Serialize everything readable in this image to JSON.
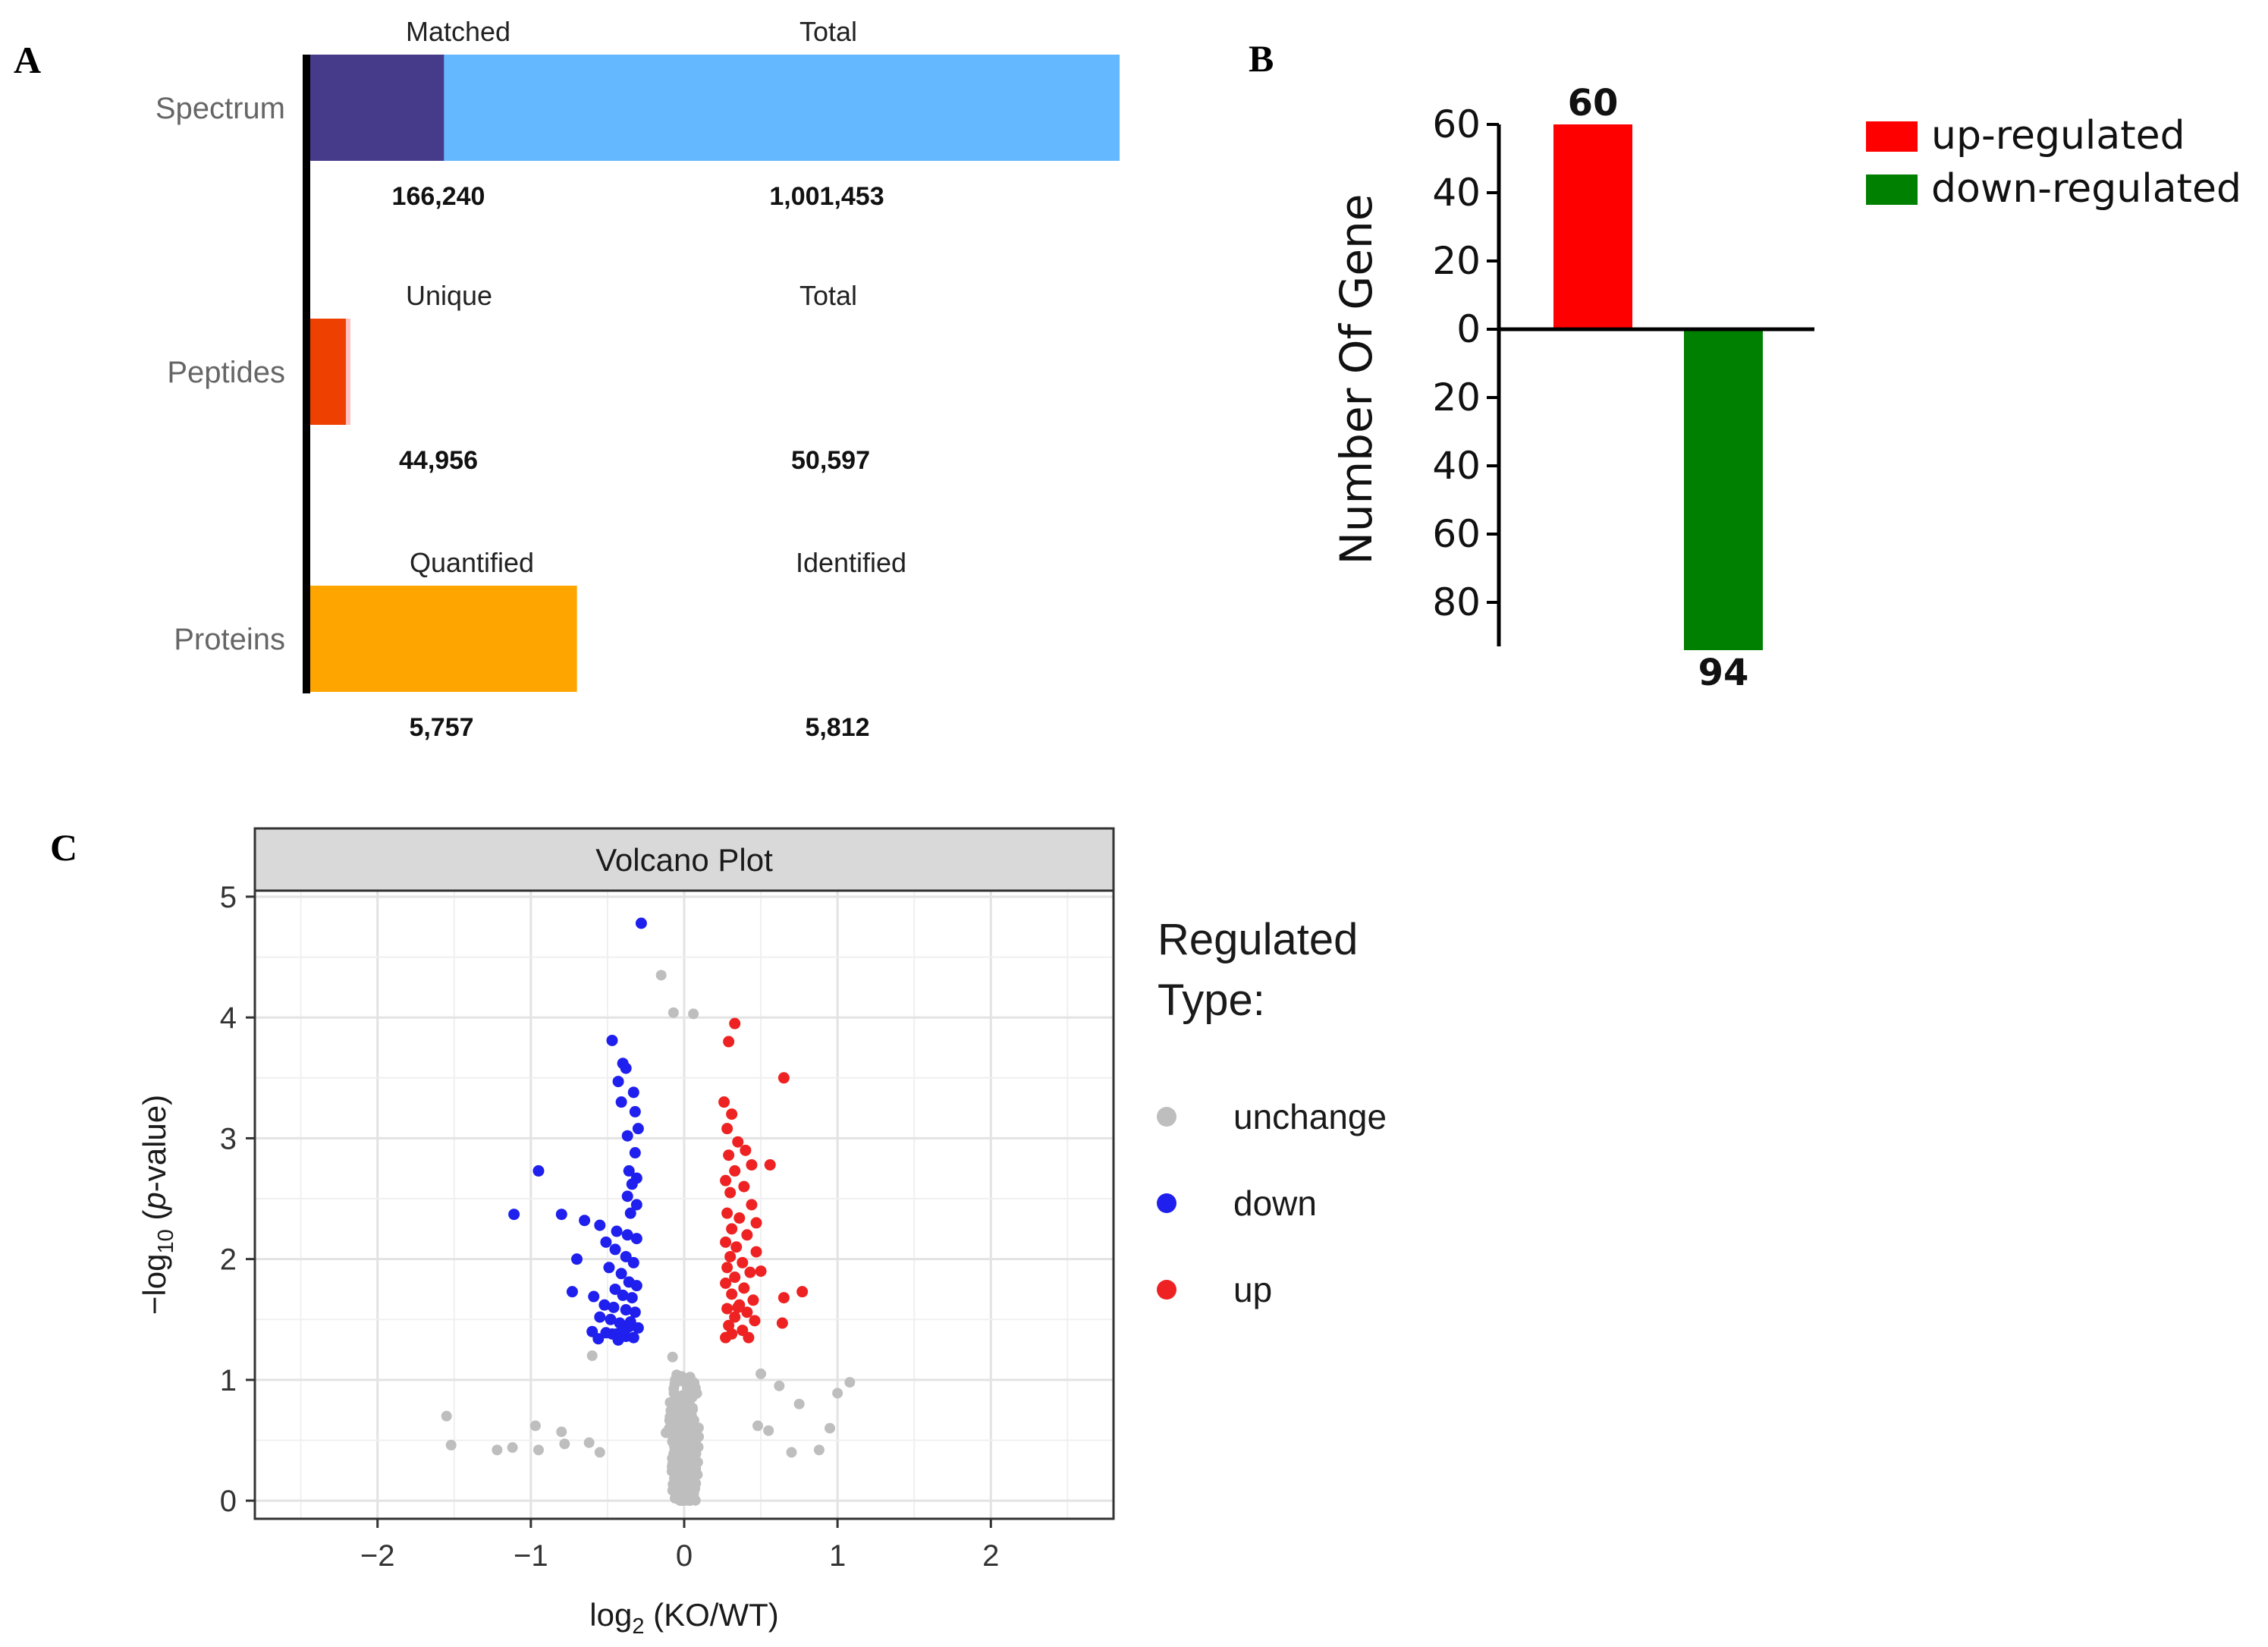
{
  "panel_letters": {
    "a": "A",
    "b": "B",
    "c": "C"
  },
  "chart_data": [
    {
      "type": "bar",
      "subtype": "horizontal-stacked-summary",
      "panel": "A",
      "rows": [
        {
          "label": "Spectrum",
          "left_header": "Matched",
          "right_header": "Total",
          "part_value": 166240,
          "total_value": 1001453,
          "part_label": "166,240",
          "total_label": "1,001,453",
          "part_color": "#463a8a",
          "total_color": "#63b8ff"
        },
        {
          "label": "Peptides",
          "left_header": "Unique",
          "right_header": "Total",
          "part_value": 44956,
          "total_value": 50597,
          "part_label": "44,956",
          "total_label": "50,597",
          "part_color": "#ee4000",
          "total_color": "#ffc1c1"
        },
        {
          "label": "Proteins",
          "left_header": "Quantified",
          "right_header": "Identified",
          "part_value": 5757,
          "total_value": 5812,
          "part_label": "5,757",
          "total_label": "5,812",
          "part_color": "#ffa500",
          "total_color": "#ffa500"
        }
      ]
    },
    {
      "type": "bar",
      "panel": "B",
      "categories": [
        "up-regulated",
        "down-regulated"
      ],
      "values": [
        60,
        -94
      ],
      "value_labels": [
        "60",
        "94"
      ],
      "colors": [
        "#ff0000",
        "#008000"
      ],
      "ylabel": "Number Of Gene",
      "ylim": [
        -94,
        60
      ],
      "yticks": [
        60,
        40,
        20,
        0,
        -20,
        -40,
        -60,
        -80
      ],
      "ytick_labels": [
        "60",
        "40",
        "20",
        "0",
        "20",
        "40",
        "60",
        "80"
      ],
      "legend": {
        "position": "right",
        "entries": [
          "up-regulated",
          "down-regulated"
        ]
      }
    },
    {
      "type": "scatter",
      "panel": "C",
      "title": "Volcano Plot",
      "xlabel_parts": {
        "base": "log",
        "sub": "2",
        "rest": " (KO/WT)"
      },
      "ylabel_parts": {
        "pre": "−log",
        "sub": "10",
        "open": " (",
        "italic": "p",
        "rest": "-value)"
      },
      "xlim": [
        -2.8,
        2.8
      ],
      "ylim": [
        -0.15,
        5.05
      ],
      "xticks": [
        -2,
        -1,
        0,
        1,
        2
      ],
      "xtick_labels": [
        "−2",
        "−1",
        "0",
        "1",
        "2"
      ],
      "yticks": [
        0,
        1,
        2,
        3,
        4,
        5
      ],
      "ytick_labels": [
        "0",
        "1",
        "2",
        "3",
        "4",
        "5"
      ],
      "legend": {
        "title_line1": "Regulated",
        "title_line2": "Type:",
        "position": "right",
        "entries": [
          {
            "name": "unchange",
            "color": "#bebebe"
          },
          {
            "name": "down",
            "color": "#1f1fee"
          },
          {
            "name": "up",
            "color": "#ee2222"
          }
        ]
      },
      "series": [
        {
          "name": "down",
          "color": "#1f1fee",
          "points": [
            [
              -0.28,
              4.78
            ],
            [
              -0.47,
              3.81
            ],
            [
              -0.4,
              3.62
            ],
            [
              -0.38,
              3.58
            ],
            [
              -0.43,
              3.47
            ],
            [
              -0.33,
              3.38
            ],
            [
              -0.41,
              3.3
            ],
            [
              -0.32,
              3.22
            ],
            [
              -0.3,
              3.08
            ],
            [
              -0.37,
              3.02
            ],
            [
              -0.32,
              2.88
            ],
            [
              -0.36,
              2.73
            ],
            [
              -0.31,
              2.67
            ],
            [
              -0.34,
              2.62
            ],
            [
              -0.95,
              2.73
            ],
            [
              -0.37,
              2.52
            ],
            [
              -0.31,
              2.45
            ],
            [
              -0.35,
              2.38
            ],
            [
              -1.11,
              2.37
            ],
            [
              -0.8,
              2.37
            ],
            [
              -0.65,
              2.32
            ],
            [
              -0.55,
              2.28
            ],
            [
              -0.44,
              2.23
            ],
            [
              -0.37,
              2.2
            ],
            [
              -0.31,
              2.17
            ],
            [
              -0.51,
              2.14
            ],
            [
              -0.45,
              2.08
            ],
            [
              -0.38,
              2.02
            ],
            [
              -0.7,
              2.0
            ],
            [
              -0.33,
              1.97
            ],
            [
              -0.49,
              1.93
            ],
            [
              -0.41,
              1.88
            ],
            [
              -0.36,
              1.81
            ],
            [
              -0.31,
              1.78
            ],
            [
              -0.73,
              1.73
            ],
            [
              -0.45,
              1.75
            ],
            [
              -0.4,
              1.7
            ],
            [
              -0.34,
              1.68
            ],
            [
              -0.59,
              1.69
            ],
            [
              -0.52,
              1.62
            ],
            [
              -0.46,
              1.6
            ],
            [
              -0.38,
              1.58
            ],
            [
              -0.32,
              1.56
            ],
            [
              -0.55,
              1.52
            ],
            [
              -0.48,
              1.5
            ],
            [
              -0.42,
              1.47
            ],
            [
              -0.36,
              1.44
            ],
            [
              -0.3,
              1.43
            ],
            [
              -0.6,
              1.4
            ],
            [
              -0.51,
              1.39
            ],
            [
              -0.44,
              1.38
            ],
            [
              -0.38,
              1.36
            ],
            [
              -0.33,
              1.35
            ],
            [
              -0.56,
              1.34
            ],
            [
              -0.47,
              1.38
            ],
            [
              -0.4,
              1.41
            ],
            [
              -0.35,
              1.48
            ],
            [
              -0.43,
              1.33
            ]
          ]
        },
        {
          "name": "up",
          "color": "#ee2222",
          "points": [
            [
              0.33,
              3.95
            ],
            [
              0.29,
              3.8
            ],
            [
              0.65,
              3.5
            ],
            [
              0.26,
              3.3
            ],
            [
              0.31,
              3.2
            ],
            [
              0.28,
              3.08
            ],
            [
              0.35,
              2.97
            ],
            [
              0.4,
              2.9
            ],
            [
              0.29,
              2.86
            ],
            [
              0.44,
              2.78
            ],
            [
              0.56,
              2.78
            ],
            [
              0.33,
              2.73
            ],
            [
              0.27,
              2.65
            ],
            [
              0.39,
              2.6
            ],
            [
              0.3,
              2.55
            ],
            [
              0.44,
              2.45
            ],
            [
              0.28,
              2.38
            ],
            [
              0.36,
              2.34
            ],
            [
              0.47,
              2.3
            ],
            [
              0.31,
              2.25
            ],
            [
              0.41,
              2.2
            ],
            [
              0.27,
              2.14
            ],
            [
              0.34,
              2.1
            ],
            [
              0.47,
              2.06
            ],
            [
              0.3,
              2.02
            ],
            [
              0.38,
              1.97
            ],
            [
              0.28,
              1.93
            ],
            [
              0.43,
              1.89
            ],
            [
              0.5,
              1.9
            ],
            [
              0.33,
              1.85
            ],
            [
              0.27,
              1.8
            ],
            [
              0.39,
              1.76
            ],
            [
              0.77,
              1.73
            ],
            [
              0.31,
              1.71
            ],
            [
              0.65,
              1.68
            ],
            [
              0.45,
              1.66
            ],
            [
              0.36,
              1.62
            ],
            [
              0.28,
              1.59
            ],
            [
              0.41,
              1.56
            ],
            [
              0.33,
              1.52
            ],
            [
              0.46,
              1.49
            ],
            [
              0.64,
              1.47
            ],
            [
              0.29,
              1.45
            ],
            [
              0.38,
              1.41
            ],
            [
              0.31,
              1.38
            ],
            [
              0.42,
              1.35
            ],
            [
              0.27,
              1.35
            ],
            [
              0.35,
              1.6
            ]
          ]
        }
      ]
    }
  ]
}
